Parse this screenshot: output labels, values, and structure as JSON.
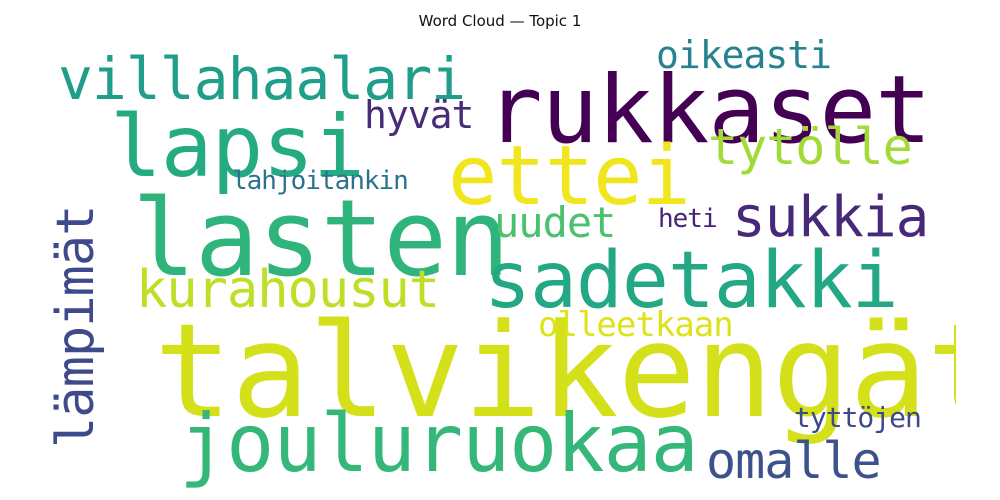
{
  "title": "Word Cloud — Topic 1",
  "words": [
    {
      "text": "talvikengät",
      "color": "#d4e11a"
    },
    {
      "text": "lasten",
      "color": "#2fb47c"
    },
    {
      "text": "rukkaset",
      "color": "#440154"
    },
    {
      "text": "jouluruokaa",
      "color": "#35b779"
    },
    {
      "text": "sadetakki",
      "color": "#22a884"
    },
    {
      "text": "lapsi",
      "color": "#25ab82"
    },
    {
      "text": "ettei",
      "color": "#f1e51d"
    },
    {
      "text": "villahaalari",
      "color": "#1f9e89"
    },
    {
      "text": "lämpimät",
      "color": "#3e4a89"
    },
    {
      "text": "sukkia",
      "color": "#482878"
    },
    {
      "text": "kurahousut",
      "color": "#bddf26"
    },
    {
      "text": "tytölle",
      "color": "#a2da37"
    },
    {
      "text": "omalle",
      "color": "#3b528b"
    },
    {
      "text": "uudet",
      "color": "#4ac16d"
    },
    {
      "text": "oikeasti",
      "color": "#26828e"
    },
    {
      "text": "hyvät",
      "color": "#472c7a"
    },
    {
      "text": "olleetkaan",
      "color": "#dde318"
    },
    {
      "text": "tyttöjen",
      "color": "#3e4989"
    },
    {
      "text": "lahjoitankin",
      "color": "#2c728e"
    },
    {
      "text": "heti",
      "color": "#482475"
    }
  ]
}
